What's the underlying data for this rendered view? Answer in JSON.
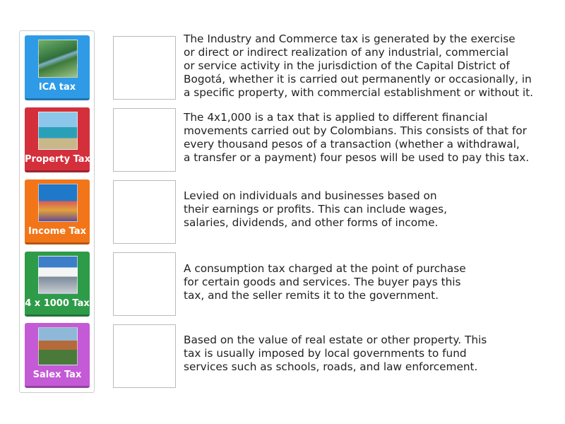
{
  "tiles": [
    {
      "label": "ICA tax",
      "color": "#2f9be6"
    },
    {
      "label": "Property Tax",
      "color": "#d3303c"
    },
    {
      "label": "Income Tax",
      "color": "#f27619"
    },
    {
      "label": "4 x 1000 Tax",
      "color": "#2e9b48"
    },
    {
      "label": "Salex Tax",
      "color": "#c45ad6"
    }
  ],
  "descriptions": [
    [
      "The Industry and Commerce tax is generated by the exercise",
      "or direct or indirect realization of any industrial, commercial",
      "or service activity in the jurisdiction of the Capital District of",
      "Bogotá, whether it is carried out permanently or occasionally, in",
      "a specific property, with commercial establishment or without it."
    ],
    [
      "The 4x1,000 is a tax that is applied to different financial",
      "movements carried out by Colombians. This consists of that for",
      "every thousand pesos of a transaction (whether a withdrawal,",
      "a transfer or a payment) four pesos will be used to pay this tax."
    ],
    [
      "Levied on individuals and businesses based on",
      "their earnings or profits. This can include wages,",
      "salaries, dividends, and other forms of income."
    ],
    [
      "A consumption tax charged at the point of purchase",
      "for certain goods and services. The buyer pays this",
      "tax, and the seller remits it to the government."
    ],
    [
      "Based on the value of real estate or other property. This",
      "tax is usually imposed by local governments to fund",
      "services such as schools, roads, and law enforcement."
    ]
  ]
}
